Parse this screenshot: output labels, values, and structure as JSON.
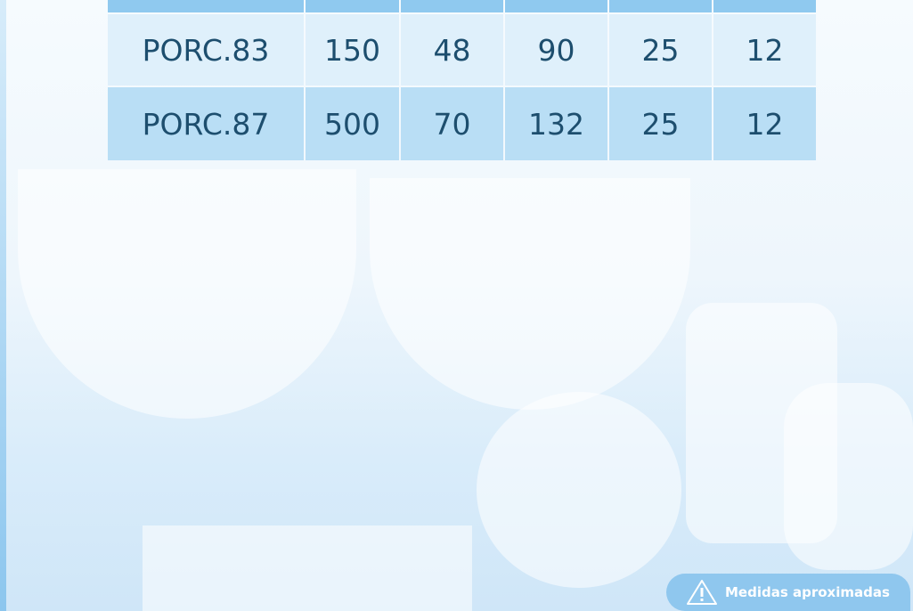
{
  "table": {
    "rows": [
      [
        "PORC.83",
        "150",
        "48",
        "90",
        "25",
        "12"
      ],
      [
        "PORC.87",
        "500",
        "70",
        "132",
        "25",
        "12"
      ]
    ]
  },
  "badge": {
    "text": "Medidas aproximadas"
  }
}
